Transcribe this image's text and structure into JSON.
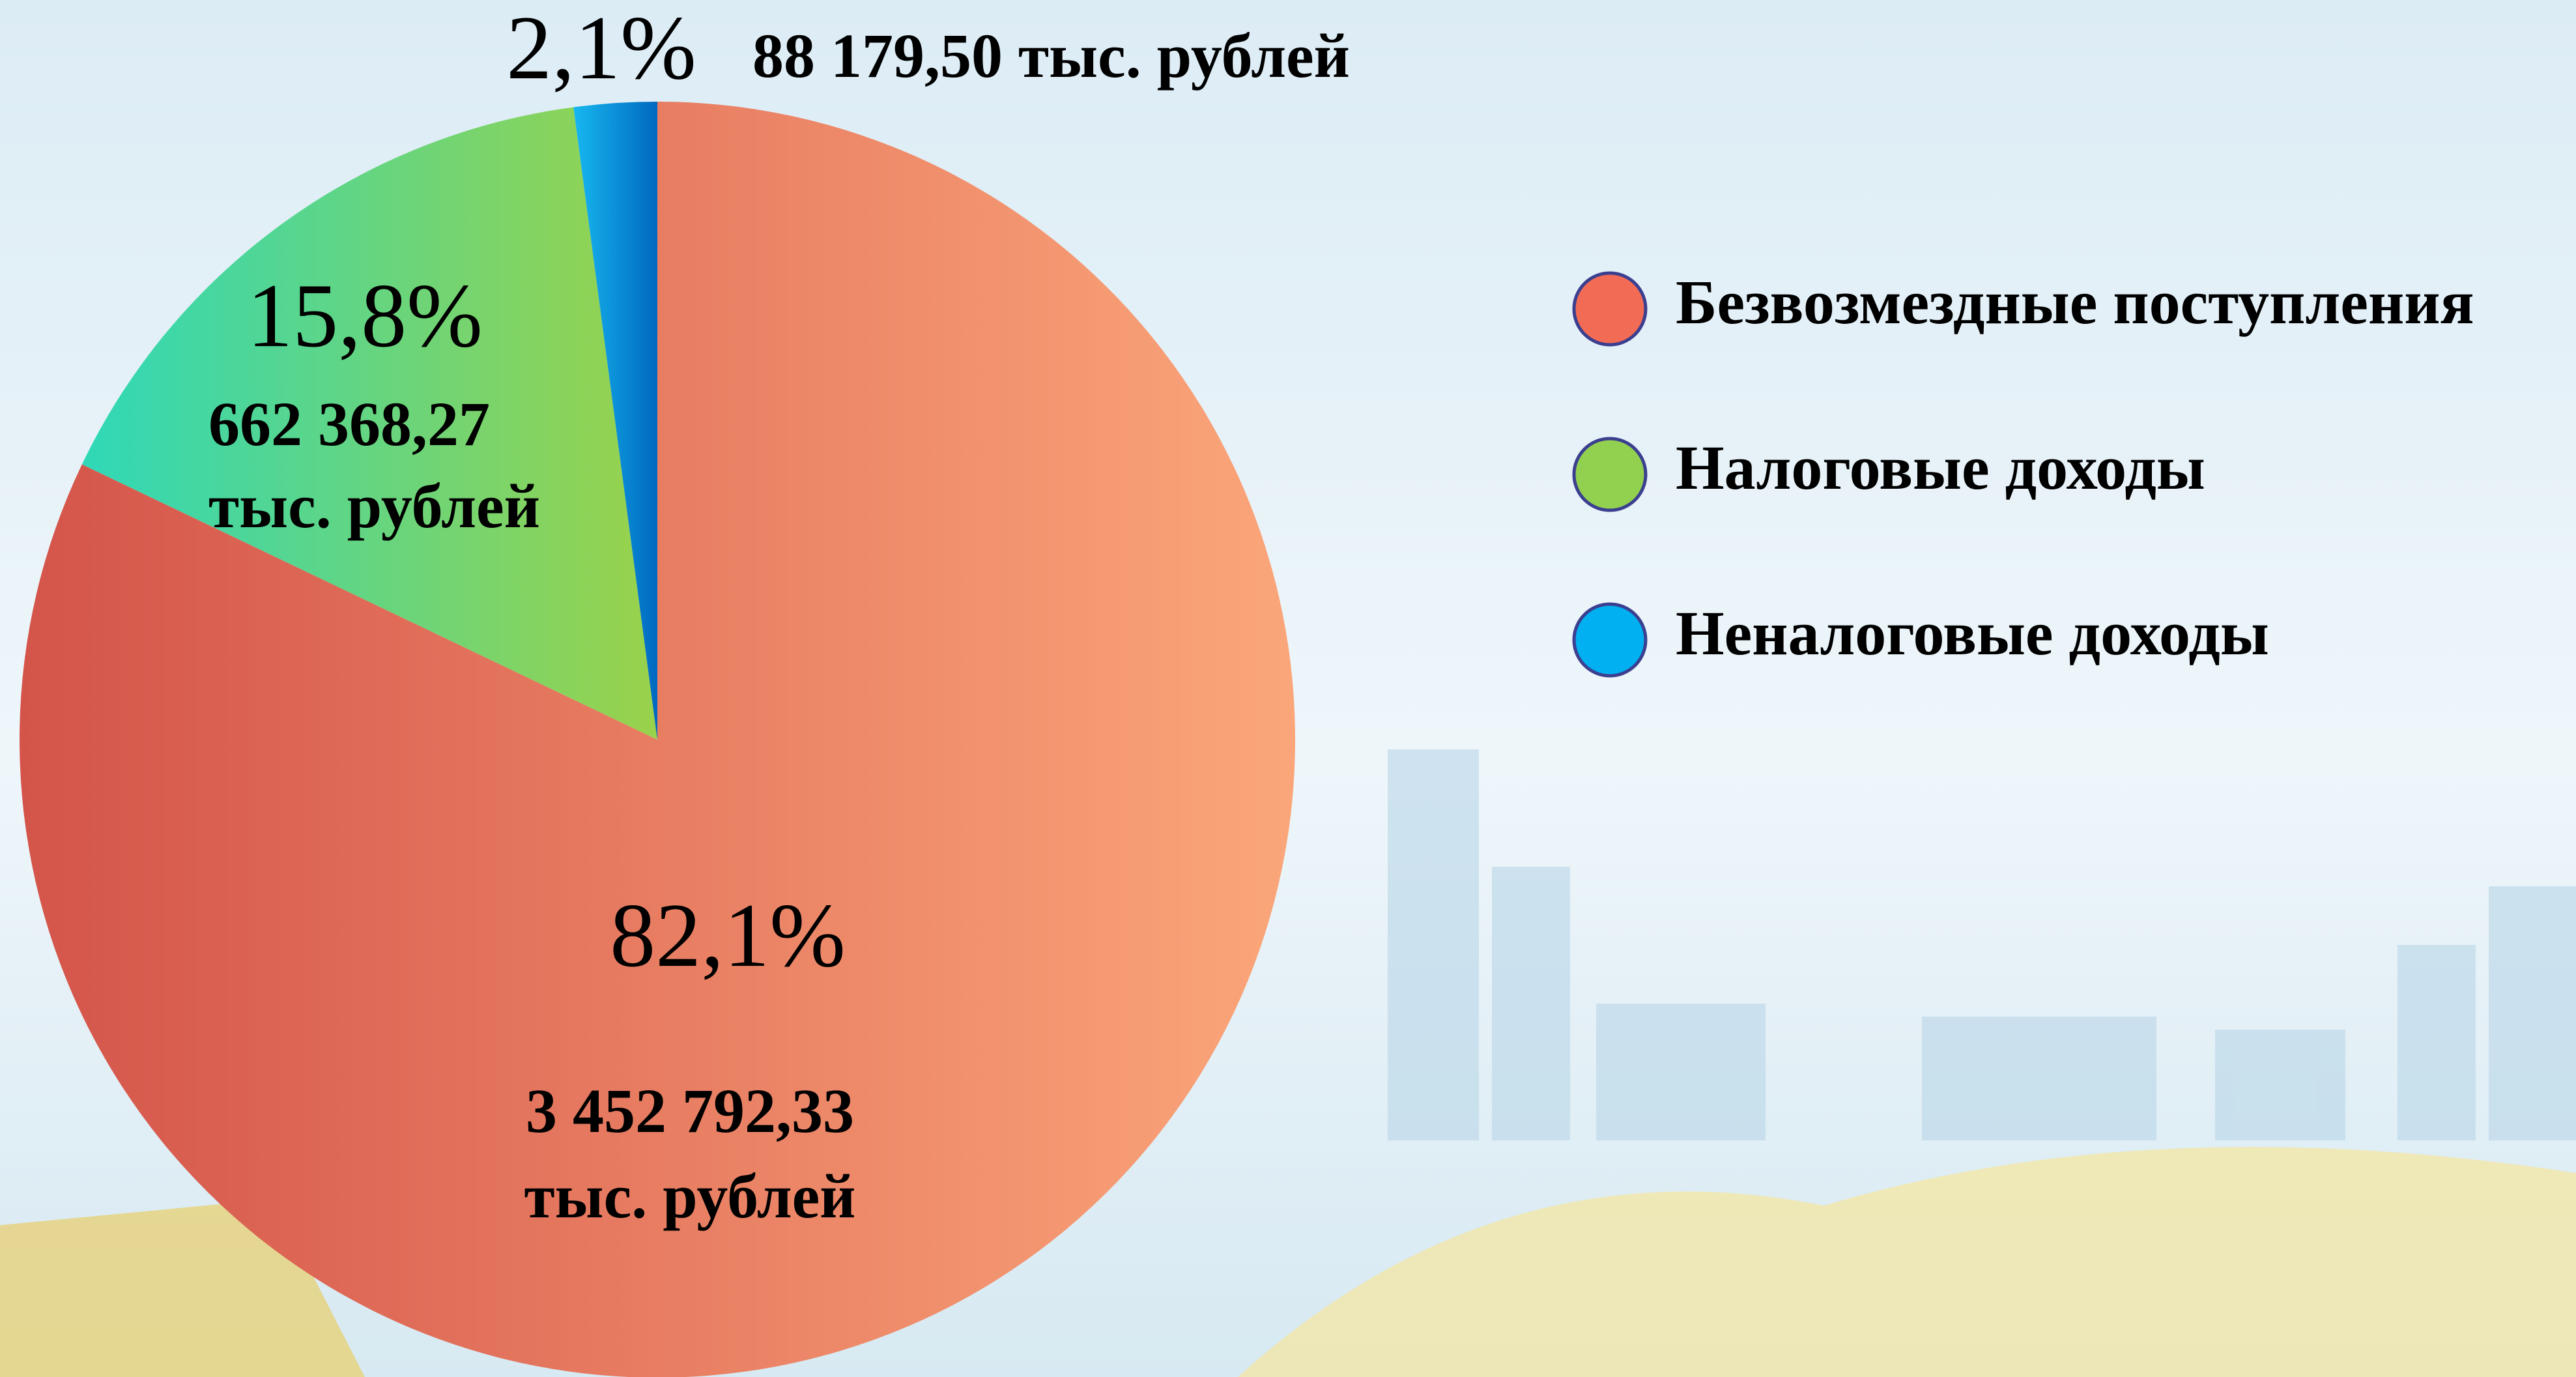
{
  "chart_data": {
    "type": "pie",
    "categories": [
      "Безвозмездные поступления",
      "Налоговые доходы",
      "Неналоговые доходы"
    ],
    "values": [
      82.1,
      15.8,
      2.1
    ],
    "value_labels": [
      "82,1%",
      "15,8%",
      "2,1%"
    ],
    "colors": [
      "#f26b55",
      "#92d050",
      "#00b0f0"
    ],
    "amounts": [
      "3 452 792,33",
      "662 368,27",
      "88 179,50"
    ],
    "amount_unit": "тыс. рублей"
  }
}
